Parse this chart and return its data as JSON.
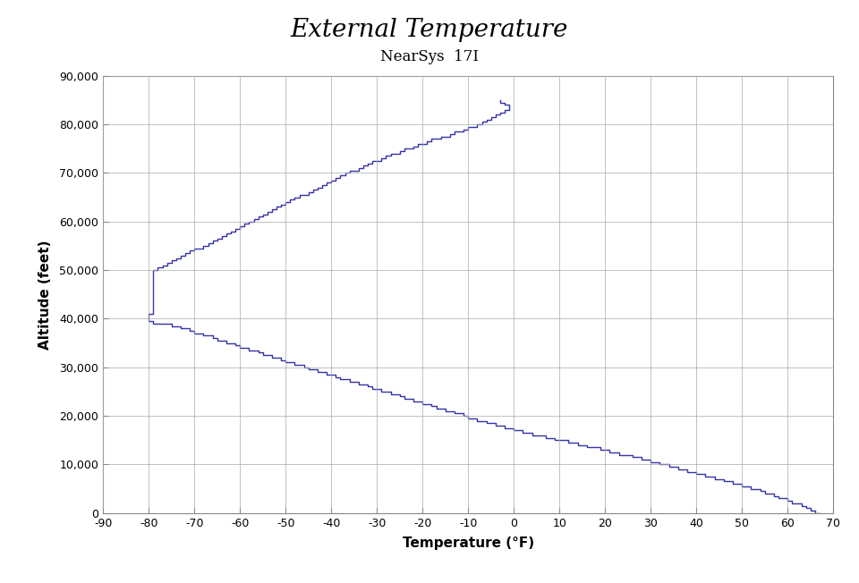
{
  "title": "External Temperature",
  "subtitle": "NearSys  17I",
  "xlabel": "Temperature (°F)",
  "ylabel": "Altitude (feet)",
  "xlim": [
    -90,
    70
  ],
  "ylim": [
    0,
    90000
  ],
  "xticks": [
    -90,
    -80,
    -70,
    -60,
    -50,
    -40,
    -30,
    -20,
    -10,
    0,
    10,
    20,
    30,
    40,
    50,
    60,
    70
  ],
  "yticks": [
    0,
    10000,
    20000,
    30000,
    40000,
    50000,
    60000,
    70000,
    80000,
    90000
  ],
  "ytick_labels": [
    "0",
    "10,000",
    "20,000",
    "30,000",
    "40,000",
    "50,000",
    "60,000",
    "70,000",
    "80,000",
    "90,000"
  ],
  "line_color": "#3333aa",
  "line_width": 1.0,
  "background_color": "#ffffff",
  "grid_color": "#aaaaaa",
  "title_fontsize": 20,
  "subtitle_fontsize": 12,
  "axis_label_fontsize": 11,
  "tick_fontsize": 9,
  "data_points": [
    [
      67,
      0
    ],
    [
      66,
      500
    ],
    [
      65,
      1000
    ],
    [
      64,
      1500
    ],
    [
      63,
      2000
    ],
    [
      61,
      2500
    ],
    [
      60,
      3000
    ],
    [
      58,
      3500
    ],
    [
      57,
      4000
    ],
    [
      55,
      4500
    ],
    [
      54,
      5000
    ],
    [
      52,
      5500
    ],
    [
      50,
      6000
    ],
    [
      48,
      6500
    ],
    [
      46,
      7000
    ],
    [
      44,
      7500
    ],
    [
      42,
      8000
    ],
    [
      40,
      8500
    ],
    [
      38,
      9000
    ],
    [
      36,
      9500
    ],
    [
      34,
      10000
    ],
    [
      32,
      10500
    ],
    [
      30,
      11000
    ],
    [
      28,
      11500
    ],
    [
      26,
      12000
    ],
    [
      23,
      12500
    ],
    [
      21,
      13000
    ],
    [
      19,
      13500
    ],
    [
      16,
      14000
    ],
    [
      14,
      14500
    ],
    [
      12,
      15000
    ],
    [
      9,
      15500
    ],
    [
      7,
      16000
    ],
    [
      4,
      16500
    ],
    [
      2,
      17000
    ],
    [
      0,
      17500
    ],
    [
      -2,
      18000
    ],
    [
      -4,
      18500
    ],
    [
      -6,
      19000
    ],
    [
      -8,
      19500
    ],
    [
      -10,
      20000
    ],
    [
      -11,
      20500
    ],
    [
      -13,
      21000
    ],
    [
      -15,
      21500
    ],
    [
      -17,
      22000
    ],
    [
      -18,
      22500
    ],
    [
      -20,
      23000
    ],
    [
      -22,
      23500
    ],
    [
      -24,
      24000
    ],
    [
      -25,
      24500
    ],
    [
      -27,
      25000
    ],
    [
      -29,
      25500
    ],
    [
      -31,
      26000
    ],
    [
      -32,
      26500
    ],
    [
      -34,
      27000
    ],
    [
      -36,
      27500
    ],
    [
      -38,
      28000
    ],
    [
      -39,
      28500
    ],
    [
      -41,
      29000
    ],
    [
      -43,
      29500
    ],
    [
      -45,
      30000
    ],
    [
      -46,
      30500
    ],
    [
      -48,
      31000
    ],
    [
      -50,
      31500
    ],
    [
      -51,
      32000
    ],
    [
      -53,
      32500
    ],
    [
      -55,
      33000
    ],
    [
      -56,
      33500
    ],
    [
      -58,
      34000
    ],
    [
      -60,
      34500
    ],
    [
      -61,
      35000
    ],
    [
      -63,
      35500
    ],
    [
      -65,
      36000
    ],
    [
      -66,
      36500
    ],
    [
      -68,
      37000
    ],
    [
      -70,
      37500
    ],
    [
      -71,
      38000
    ],
    [
      -73,
      38500
    ],
    [
      -75,
      39000
    ],
    [
      -79,
      39500
    ],
    [
      -80,
      40000
    ],
    [
      -80,
      40500
    ],
    [
      -80,
      41000
    ],
    [
      -79,
      41500
    ],
    [
      -79,
      42000
    ],
    [
      -79,
      42500
    ],
    [
      -79,
      43000
    ],
    [
      -79,
      43500
    ],
    [
      -79,
      44000
    ],
    [
      -79,
      44500
    ],
    [
      -79,
      45000
    ],
    [
      -79,
      45500
    ],
    [
      -79,
      46000
    ],
    [
      -79,
      46500
    ],
    [
      -79,
      47000
    ],
    [
      -79,
      47500
    ],
    [
      -79,
      48000
    ],
    [
      -79,
      48500
    ],
    [
      -79,
      49000
    ],
    [
      -79,
      49500
    ],
    [
      -79,
      50000
    ],
    [
      -78,
      50500
    ],
    [
      -77,
      51000
    ],
    [
      -76,
      51500
    ],
    [
      -75,
      52000
    ],
    [
      -74,
      52500
    ],
    [
      -73,
      53000
    ],
    [
      -72,
      53500
    ],
    [
      -71,
      54000
    ],
    [
      -70,
      54500
    ],
    [
      -68,
      55000
    ],
    [
      -67,
      55500
    ],
    [
      -66,
      56000
    ],
    [
      -65,
      56500
    ],
    [
      -64,
      57000
    ],
    [
      -63,
      57500
    ],
    [
      -62,
      58000
    ],
    [
      -61,
      58500
    ],
    [
      -60,
      59000
    ],
    [
      -59,
      59500
    ],
    [
      -58,
      60000
    ],
    [
      -57,
      60500
    ],
    [
      -56,
      61000
    ],
    [
      -55,
      61500
    ],
    [
      -54,
      62000
    ],
    [
      -53,
      62500
    ],
    [
      -52,
      63000
    ],
    [
      -51,
      63500
    ],
    [
      -50,
      64000
    ],
    [
      -49,
      64500
    ],
    [
      -48,
      65000
    ],
    [
      -47,
      65500
    ],
    [
      -45,
      66000
    ],
    [
      -44,
      66500
    ],
    [
      -43,
      67000
    ],
    [
      -42,
      67500
    ],
    [
      -41,
      68000
    ],
    [
      -40,
      68500
    ],
    [
      -39,
      69000
    ],
    [
      -38,
      69500
    ],
    [
      -37,
      70000
    ],
    [
      -36,
      70500
    ],
    [
      -34,
      71000
    ],
    [
      -33,
      71500
    ],
    [
      -32,
      72000
    ],
    [
      -31,
      72500
    ],
    [
      -29,
      73000
    ],
    [
      -28,
      73500
    ],
    [
      -27,
      74000
    ],
    [
      -25,
      74500
    ],
    [
      -24,
      75000
    ],
    [
      -22,
      75500
    ],
    [
      -21,
      76000
    ],
    [
      -19,
      76500
    ],
    [
      -18,
      77000
    ],
    [
      -16,
      77500
    ],
    [
      -14,
      78000
    ],
    [
      -13,
      78500
    ],
    [
      -11,
      79000
    ],
    [
      -10,
      79500
    ],
    [
      -8,
      80000
    ],
    [
      -7,
      80500
    ],
    [
      -6,
      81000
    ],
    [
      -5,
      81500
    ],
    [
      -4,
      82000
    ],
    [
      -3,
      82500
    ],
    [
      -2,
      83000
    ],
    [
      -1,
      83500
    ],
    [
      -1,
      84000
    ],
    [
      -2,
      84500
    ],
    [
      -3,
      85000
    ]
  ]
}
